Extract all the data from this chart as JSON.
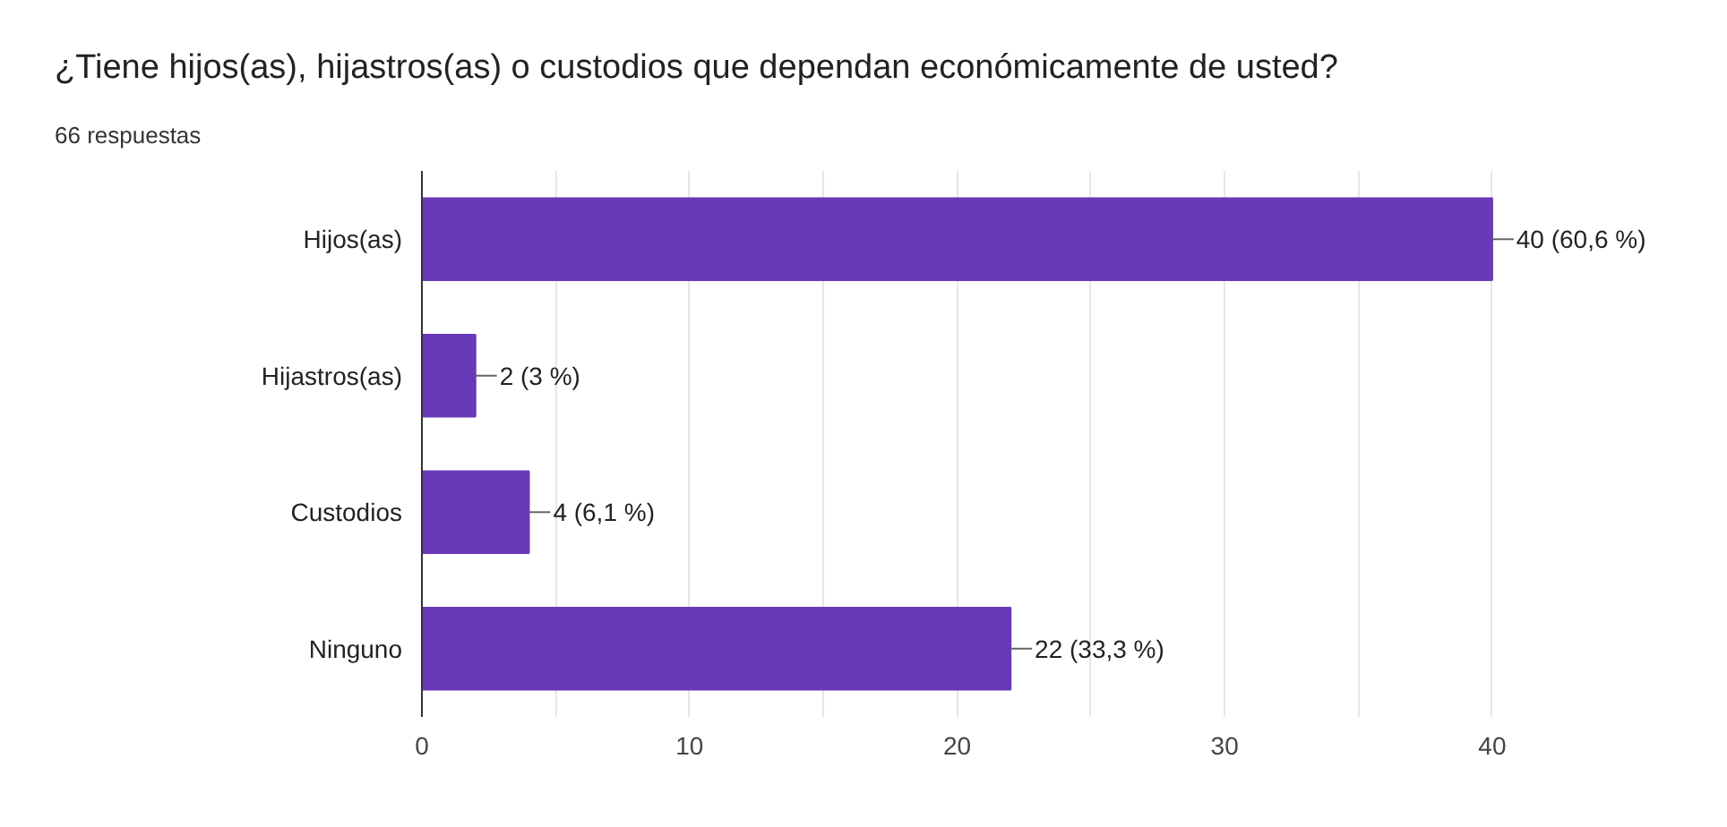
{
  "chart_data": {
    "type": "bar",
    "orientation": "horizontal",
    "title": "¿Tiene hijos(as), hijastros(as) o custodios que dependan económicamente de usted?",
    "subtitle": "66 respuestas",
    "categories": [
      "Hijos(as)",
      "Hijastros(as)",
      "Custodios",
      "Ninguno"
    ],
    "values": [
      40,
      2,
      4,
      22
    ],
    "color": "#673ab7",
    "value_labels": [
      "40 (60,6 %)",
      "2 (3 %)",
      "4 (6,1 %)",
      "22 (33,3 %)"
    ],
    "xlim": [
      0,
      40
    ],
    "xticks": [
      0,
      {
        "value": 5,
        "label": null
      },
      10,
      {
        "value": 15,
        "label": null
      },
      20,
      {
        "value": 25,
        "label": null
      },
      30,
      {
        "value": 35,
        "label": null
      },
      40
    ],
    "grid": "x"
  }
}
